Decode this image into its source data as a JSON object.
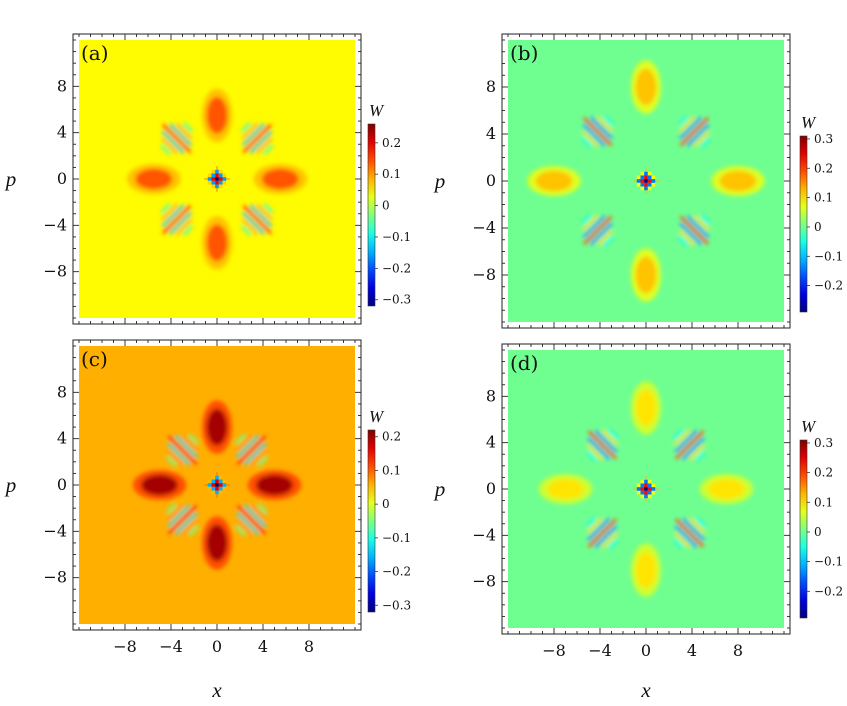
{
  "figure": {
    "x_axis_label": "x",
    "y_axis_label": "p",
    "colorbar_label": "W"
  },
  "chart_data": [
    {
      "type": "heatmap",
      "panel_label": "(a)",
      "xlabel": "",
      "ylabel": "p",
      "x_ticks": [],
      "y_ticks": [
        "8",
        "4",
        "0",
        "−4",
        "−8"
      ],
      "x_tick_values": [
        -8,
        -4,
        0,
        4,
        8
      ],
      "y_tick_values": [
        8,
        4,
        0,
        -4,
        -8
      ],
      "xlim": [
        -12,
        12
      ],
      "ylim": [
        -12,
        12
      ],
      "colorbar": {
        "label": "W",
        "range": [
          -0.32,
          0.26
        ],
        "ticks": [
          "0.2",
          "0.1",
          "0",
          "−0.1",
          "−0.2",
          "−0.3"
        ],
        "tick_values": [
          0.2,
          0.1,
          0,
          -0.1,
          -0.2,
          -0.3
        ]
      },
      "features": {
        "background_W": 0.045,
        "lobes": [
          {
            "x": 0,
            "y": 5.5,
            "W": 0.14
          },
          {
            "x": 0,
            "y": -5.5,
            "W": 0.14
          },
          {
            "x": 5.5,
            "y": 0,
            "W": 0.14
          },
          {
            "x": -5.5,
            "y": 0,
            "W": 0.14
          }
        ],
        "interference_fringes_at": [
          [
            3.5,
            3.5
          ],
          [
            -3.5,
            3.5
          ],
          [
            3.5,
            -3.5
          ],
          [
            -3.5,
            -3.5
          ]
        ],
        "center_peak": {
          "x": 0,
          "y": 0,
          "W_min": -0.32,
          "W_max": 0.26
        }
      }
    },
    {
      "type": "heatmap",
      "panel_label": "(b)",
      "xlabel": "",
      "ylabel": "p",
      "x_ticks": [],
      "y_ticks": [
        "8",
        "4",
        "0",
        "−4",
        "−8"
      ],
      "x_tick_values": [
        -8,
        -4,
        0,
        4,
        8
      ],
      "y_tick_values": [
        8,
        4,
        0,
        -4,
        -8
      ],
      "xlim": [
        -12,
        12
      ],
      "ylim": [
        -12,
        12
      ],
      "colorbar": {
        "label": "W",
        "range": [
          -0.29,
          0.31
        ],
        "ticks": [
          "0.3",
          "0.2",
          "0.1",
          "0",
          "−0.1",
          "−0.2"
        ],
        "tick_values": [
          0.3,
          0.2,
          0.1,
          0,
          -0.1,
          -0.2
        ]
      },
      "features": {
        "background_W": 0.0,
        "lobes": [
          {
            "x": 0,
            "y": 8,
            "W": 0.12
          },
          {
            "x": 0,
            "y": -8,
            "W": 0.12
          },
          {
            "x": 8,
            "y": 0,
            "W": 0.12
          },
          {
            "x": -8,
            "y": 0,
            "W": 0.12
          }
        ],
        "interference_fringes_at": [
          [
            4.2,
            4.2
          ],
          [
            -4.2,
            4.2
          ],
          [
            4.2,
            -4.2
          ],
          [
            -4.2,
            -4.2
          ]
        ],
        "center_peak": {
          "x": 0,
          "y": 0,
          "W_min": -0.29,
          "W_max": 0.31
        }
      }
    },
    {
      "type": "heatmap",
      "panel_label": "(c)",
      "xlabel": "x",
      "ylabel": "p",
      "x_ticks": [
        "−8",
        "−4",
        "0",
        "4",
        "8"
      ],
      "y_ticks": [
        "8",
        "4",
        "0",
        "−4",
        "−8"
      ],
      "x_tick_values": [
        -8,
        -4,
        0,
        4,
        8
      ],
      "y_tick_values": [
        8,
        4,
        0,
        -4,
        -8
      ],
      "xlim": [
        -12,
        12
      ],
      "ylim": [
        -12,
        12
      ],
      "colorbar": {
        "label": "W",
        "range": [
          -0.32,
          0.22
        ],
        "ticks": [
          "0.2",
          "0.1",
          "0",
          "−0.1",
          "−0.2",
          "−0.3"
        ],
        "tick_values": [
          0.2,
          0.1,
          0,
          -0.1,
          -0.2,
          -0.3
        ]
      },
      "features": {
        "background_W": 0.06,
        "lobes": [
          {
            "x": 0,
            "y": 5,
            "W": 0.2
          },
          {
            "x": 0,
            "y": -5,
            "W": 0.2
          },
          {
            "x": 5,
            "y": 0,
            "W": 0.2
          },
          {
            "x": -5,
            "y": 0,
            "W": 0.2
          }
        ],
        "interference_fringes_at": [
          [
            3,
            3
          ],
          [
            -3,
            3
          ],
          [
            3,
            -3
          ],
          [
            -3,
            -3
          ]
        ],
        "center_peak": {
          "x": 0,
          "y": 0,
          "W_min": -0.32,
          "W_max": 0.22
        }
      }
    },
    {
      "type": "heatmap",
      "panel_label": "(d)",
      "xlabel": "x",
      "ylabel": "p",
      "x_ticks": [
        "−8",
        "−4",
        "0",
        "4",
        "8"
      ],
      "y_ticks": [
        "8",
        "4",
        "0",
        "−4",
        "−8"
      ],
      "x_tick_values": [
        -8,
        -4,
        0,
        4,
        8
      ],
      "y_tick_values": [
        8,
        4,
        0,
        -4,
        -8
      ],
      "xlim": [
        -12,
        12
      ],
      "ylim": [
        -12,
        12
      ],
      "colorbar": {
        "label": "W",
        "range": [
          -0.29,
          0.31
        ],
        "ticks": [
          "0.3",
          "0.2",
          "0.1",
          "0",
          "−0.1",
          "−0.2"
        ],
        "tick_values": [
          0.3,
          0.2,
          0.1,
          0,
          -0.1,
          -0.2
        ]
      },
      "features": {
        "background_W": 0.0,
        "lobes": [
          {
            "x": 0,
            "y": 7,
            "W": 0.1
          },
          {
            "x": 0,
            "y": -7,
            "W": 0.1
          },
          {
            "x": 7,
            "y": 0,
            "W": 0.1
          },
          {
            "x": -7,
            "y": 0,
            "W": 0.1
          }
        ],
        "interference_fringes_at": [
          [
            3.8,
            3.8
          ],
          [
            -3.8,
            3.8
          ],
          [
            3.8,
            -3.8
          ],
          [
            -3.8,
            -3.8
          ]
        ],
        "center_peak": {
          "x": 0,
          "y": 0,
          "W_min": -0.29,
          "W_max": 0.31
        }
      }
    }
  ]
}
